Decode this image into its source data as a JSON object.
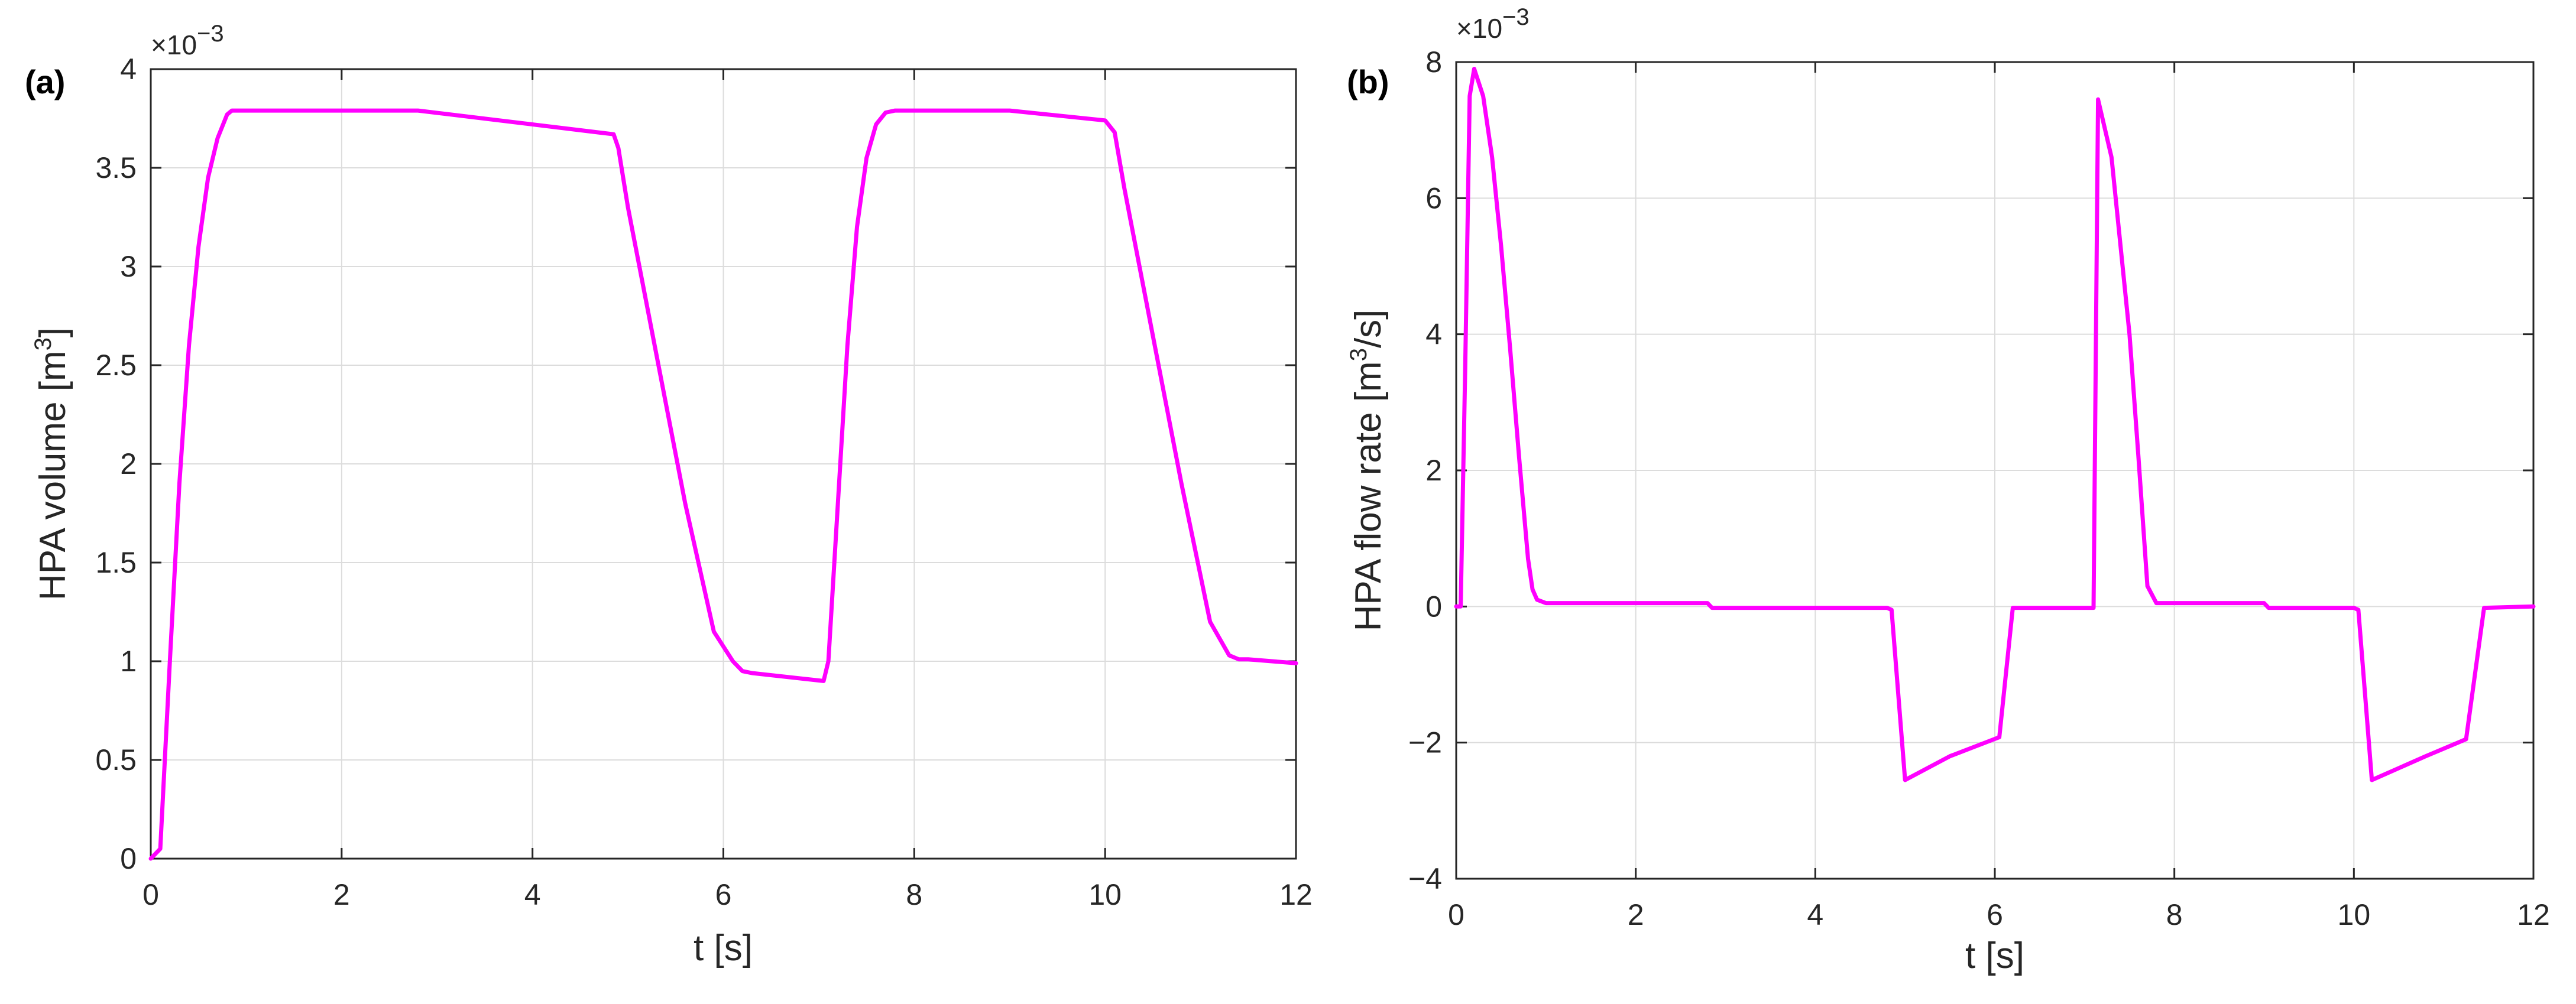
{
  "colors": {
    "line": "#ff00ff",
    "grid": "#dcdcdc",
    "axes": "#262626"
  },
  "chart_data": [
    {
      "type": "line",
      "panel_label": "(a)",
      "xlabel": "t [s]",
      "ylabel": {
        "main": "HPA volume [m",
        "sup": "3",
        "end": "]"
      },
      "multiplier": {
        "base": "×10",
        "exp": "−3"
      },
      "xlim": [
        0,
        12
      ],
      "ylim": [
        0,
        4
      ],
      "grid": true,
      "xticks": [
        0,
        2,
        4,
        6,
        8,
        10,
        12
      ],
      "yticks": [
        0,
        0.5,
        1,
        1.5,
        2,
        2.5,
        3,
        3.5,
        4
      ],
      "xtick_labels": [
        "0",
        "2",
        "4",
        "6",
        "8",
        "10",
        "12"
      ],
      "ytick_labels": [
        "0",
        "0.5",
        "1",
        "1.5",
        "2",
        "2.5",
        "3",
        "3.5",
        "4"
      ],
      "series": [
        {
          "x": [
            0,
            0.1,
            0.2,
            0.3,
            0.4,
            0.5,
            0.6,
            0.7,
            0.8,
            0.85,
            2.8,
            4.85,
            4.9,
            5.0,
            5.3,
            5.6,
            5.9,
            6.1,
            6.2,
            6.3,
            7.05,
            7.1,
            7.2,
            7.3,
            7.4,
            7.5,
            7.6,
            7.7,
            7.8,
            9.0,
            10.0,
            10.1,
            10.2,
            10.5,
            10.8,
            11.1,
            11.3,
            11.4,
            11.5,
            12.0
          ],
          "y": [
            0,
            0.05,
            1.0,
            1.9,
            2.6,
            3.1,
            3.45,
            3.65,
            3.77,
            3.79,
            3.79,
            3.67,
            3.6,
            3.3,
            2.55,
            1.8,
            1.15,
            1.0,
            0.95,
            0.94,
            0.9,
            1.0,
            1.8,
            2.6,
            3.2,
            3.55,
            3.72,
            3.78,
            3.79,
            3.79,
            3.74,
            3.68,
            3.4,
            2.65,
            1.9,
            1.2,
            1.03,
            1.01,
            1.01,
            0.99
          ]
        }
      ]
    },
    {
      "type": "line",
      "panel_label": "(b)",
      "xlabel": "t [s]",
      "ylabel": {
        "main": "HPA flow rate [m",
        "sup": "3",
        "end": "/s]"
      },
      "multiplier": {
        "base": "×10",
        "exp": "−3"
      },
      "xlim": [
        0,
        12
      ],
      "ylim": [
        -4,
        8
      ],
      "grid": true,
      "xticks": [
        0,
        2,
        4,
        6,
        8,
        10,
        12
      ],
      "yticks": [
        -4,
        -2,
        0,
        2,
        4,
        6,
        8
      ],
      "xtick_labels": [
        "0",
        "2",
        "4",
        "6",
        "8",
        "10",
        "12"
      ],
      "ytick_labels": [
        "−4",
        "−2",
        "0",
        "2",
        "4",
        "6",
        "8"
      ],
      "series": [
        {
          "x": [
            0,
            0.05,
            0.1,
            0.15,
            0.2,
            0.3,
            0.4,
            0.5,
            0.6,
            0.7,
            0.8,
            0.85,
            0.9,
            1.0,
            2.8,
            2.85,
            4.8,
            4.85,
            5.0,
            5.5,
            6.05,
            6.2,
            7.1,
            7.15,
            7.3,
            7.5,
            7.6,
            7.7,
            7.8,
            9.0,
            9.05,
            10.0,
            10.05,
            10.2,
            10.8,
            11.25,
            11.45,
            12.0
          ],
          "y": [
            0,
            0,
            3.5,
            7.5,
            7.9,
            7.5,
            6.6,
            5.3,
            3.8,
            2.2,
            0.7,
            0.25,
            0.1,
            0.05,
            0.05,
            -0.02,
            -0.02,
            -0.05,
            -2.55,
            -2.2,
            -1.92,
            -0.02,
            -0.02,
            7.45,
            6.6,
            4.0,
            2.2,
            0.3,
            0.05,
            0.05,
            -0.02,
            -0.02,
            -0.05,
            -2.55,
            -2.2,
            -1.95,
            -0.02,
            0.0
          ]
        }
      ]
    }
  ]
}
